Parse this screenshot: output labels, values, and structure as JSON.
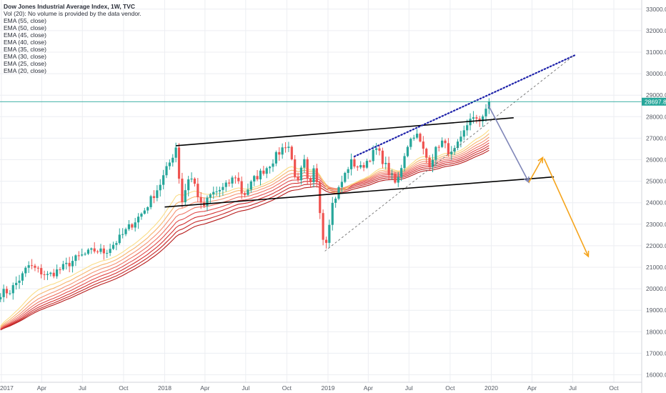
{
  "legend": {
    "title": "Dow Jones Industrial Average Index, 1W, TVC",
    "lines": [
      "Vol (20): No volume is provided by the data vendor.",
      "EMA (55, close)",
      "EMA (50, close)",
      "EMA (45, close)",
      "EMA (40, close)",
      "EMA (35, close)",
      "EMA (30, close)",
      "EMA (25, close)",
      "EMA (20, close)"
    ]
  },
  "price_tag": "28697.8",
  "colors": {
    "up": "#26a69a",
    "down": "#ef5350",
    "grid": "#eceef2",
    "price_line": "#26a69a",
    "trend_black": "#000000",
    "trend_blue_dotted": "#1e22aa",
    "arrow_blue": "#7f86b8",
    "arrow_orange": "#f5a41c",
    "dashed": "#707070",
    "ema": [
      "#b71c1c",
      "#c62828",
      "#d32f2f",
      "#e04b4b",
      "#ee7060",
      "#f59476",
      "#f7b56f",
      "#fbdc86"
    ]
  },
  "chart_data": {
    "type": "candlestick",
    "title": "Dow Jones Industrial Average Index, 1W, TVC",
    "y_ticks": [
      "16000.0",
      "17000.0",
      "18000.0",
      "19000.0",
      "20000.0",
      "21000.0",
      "22000.0",
      "23000.0",
      "24000.0",
      "25000.0",
      "26000.0",
      "27000.0",
      "28000.0",
      "29000.0",
      "30000.0",
      "31000.0",
      "32000.0",
      "33000.0"
    ],
    "x_ticks": [
      "2017",
      "Apr",
      "Jul",
      "Oct",
      "2018",
      "Apr",
      "Jul",
      "Oct",
      "2019",
      "Apr",
      "Jul",
      "Oct",
      "2020",
      "Apr",
      "Jul",
      "Oct"
    ],
    "ylim": [
      15800,
      33200
    ],
    "last_price": 28697.8,
    "price_path": [
      [
        "2016-12-30",
        19800
      ],
      [
        "2017-01-20",
        19900
      ],
      [
        "2017-02-20",
        20700
      ],
      [
        "2017-03-01",
        21100
      ],
      [
        "2017-04-15",
        20600
      ],
      [
        "2017-05-20",
        21000
      ],
      [
        "2017-06-20",
        21450
      ],
      [
        "2017-07-30",
        21800
      ],
      [
        "2017-08-20",
        21700
      ],
      [
        "2017-09-20",
        22300
      ],
      [
        "2017-10-15",
        22900
      ],
      [
        "2017-11-15",
        23600
      ],
      [
        "2017-12-20",
        24800
      ],
      [
        "2018-01-15",
        26000
      ],
      [
        "2018-01-26",
        26600
      ],
      [
        "2018-02-08",
        24000
      ],
      [
        "2018-02-25",
        25300
      ],
      [
        "2018-03-10",
        24800
      ],
      [
        "2018-03-25",
        23700
      ],
      [
        "2018-04-15",
        24400
      ],
      [
        "2018-05-15",
        24700
      ],
      [
        "2018-06-10",
        25300
      ],
      [
        "2018-06-25",
        24300
      ],
      [
        "2018-07-20",
        25100
      ],
      [
        "2018-08-20",
        25700
      ],
      [
        "2018-09-20",
        26500
      ],
      [
        "2018-10-03",
        26800
      ],
      [
        "2018-10-25",
        24800
      ],
      [
        "2018-11-08",
        26000
      ],
      [
        "2018-11-20",
        24500
      ],
      [
        "2018-12-03",
        25800
      ],
      [
        "2018-12-24",
        21800
      ],
      [
        "2019-01-10",
        23900
      ],
      [
        "2019-02-20",
        25900
      ],
      [
        "2019-03-15",
        25600
      ],
      [
        "2019-04-20",
        26500
      ],
      [
        "2019-05-15",
        25500
      ],
      [
        "2019-06-03",
        24800
      ],
      [
        "2019-06-25",
        26600
      ],
      [
        "2019-07-15",
        27300
      ],
      [
        "2019-08-15",
        25800
      ],
      [
        "2019-09-10",
        26900
      ],
      [
        "2019-10-05",
        26200
      ],
      [
        "2019-10-25",
        26900
      ],
      [
        "2019-11-15",
        28000
      ],
      [
        "2019-12-03",
        27700
      ],
      [
        "2019-12-27",
        28697.8
      ]
    ],
    "ema_periods": [
      55,
      50,
      45,
      40,
      35,
      30,
      25,
      20
    ],
    "annotations": {
      "channel_upper": [
        [
          "2018-01-26",
          26650
        ],
        [
          "2020-02-20",
          27950
        ]
      ],
      "channel_lower": [
        [
          "2018-01-01",
          23800
        ],
        [
          "2020-05-20",
          25200
        ]
      ],
      "dotted_trend": [
        [
          "2019-03-01",
          26150
        ],
        [
          "2020-07-05",
          30850
        ]
      ],
      "dashed_trend": [
        [
          "2018-12-25",
          21750
        ],
        [
          "2020-07-01",
          30800
        ]
      ],
      "blue_arrow": [
        [
          "2019-12-25",
          28550
        ],
        [
          "2020-03-25",
          24950
        ]
      ],
      "orange_arrow_1": [
        [
          "2020-03-25",
          24950
        ],
        [
          "2020-04-25",
          26100
        ]
      ],
      "orange_arrow_2": [
        [
          "2020-04-28",
          26050
        ],
        [
          "2020-08-05",
          21500
        ]
      ]
    }
  }
}
